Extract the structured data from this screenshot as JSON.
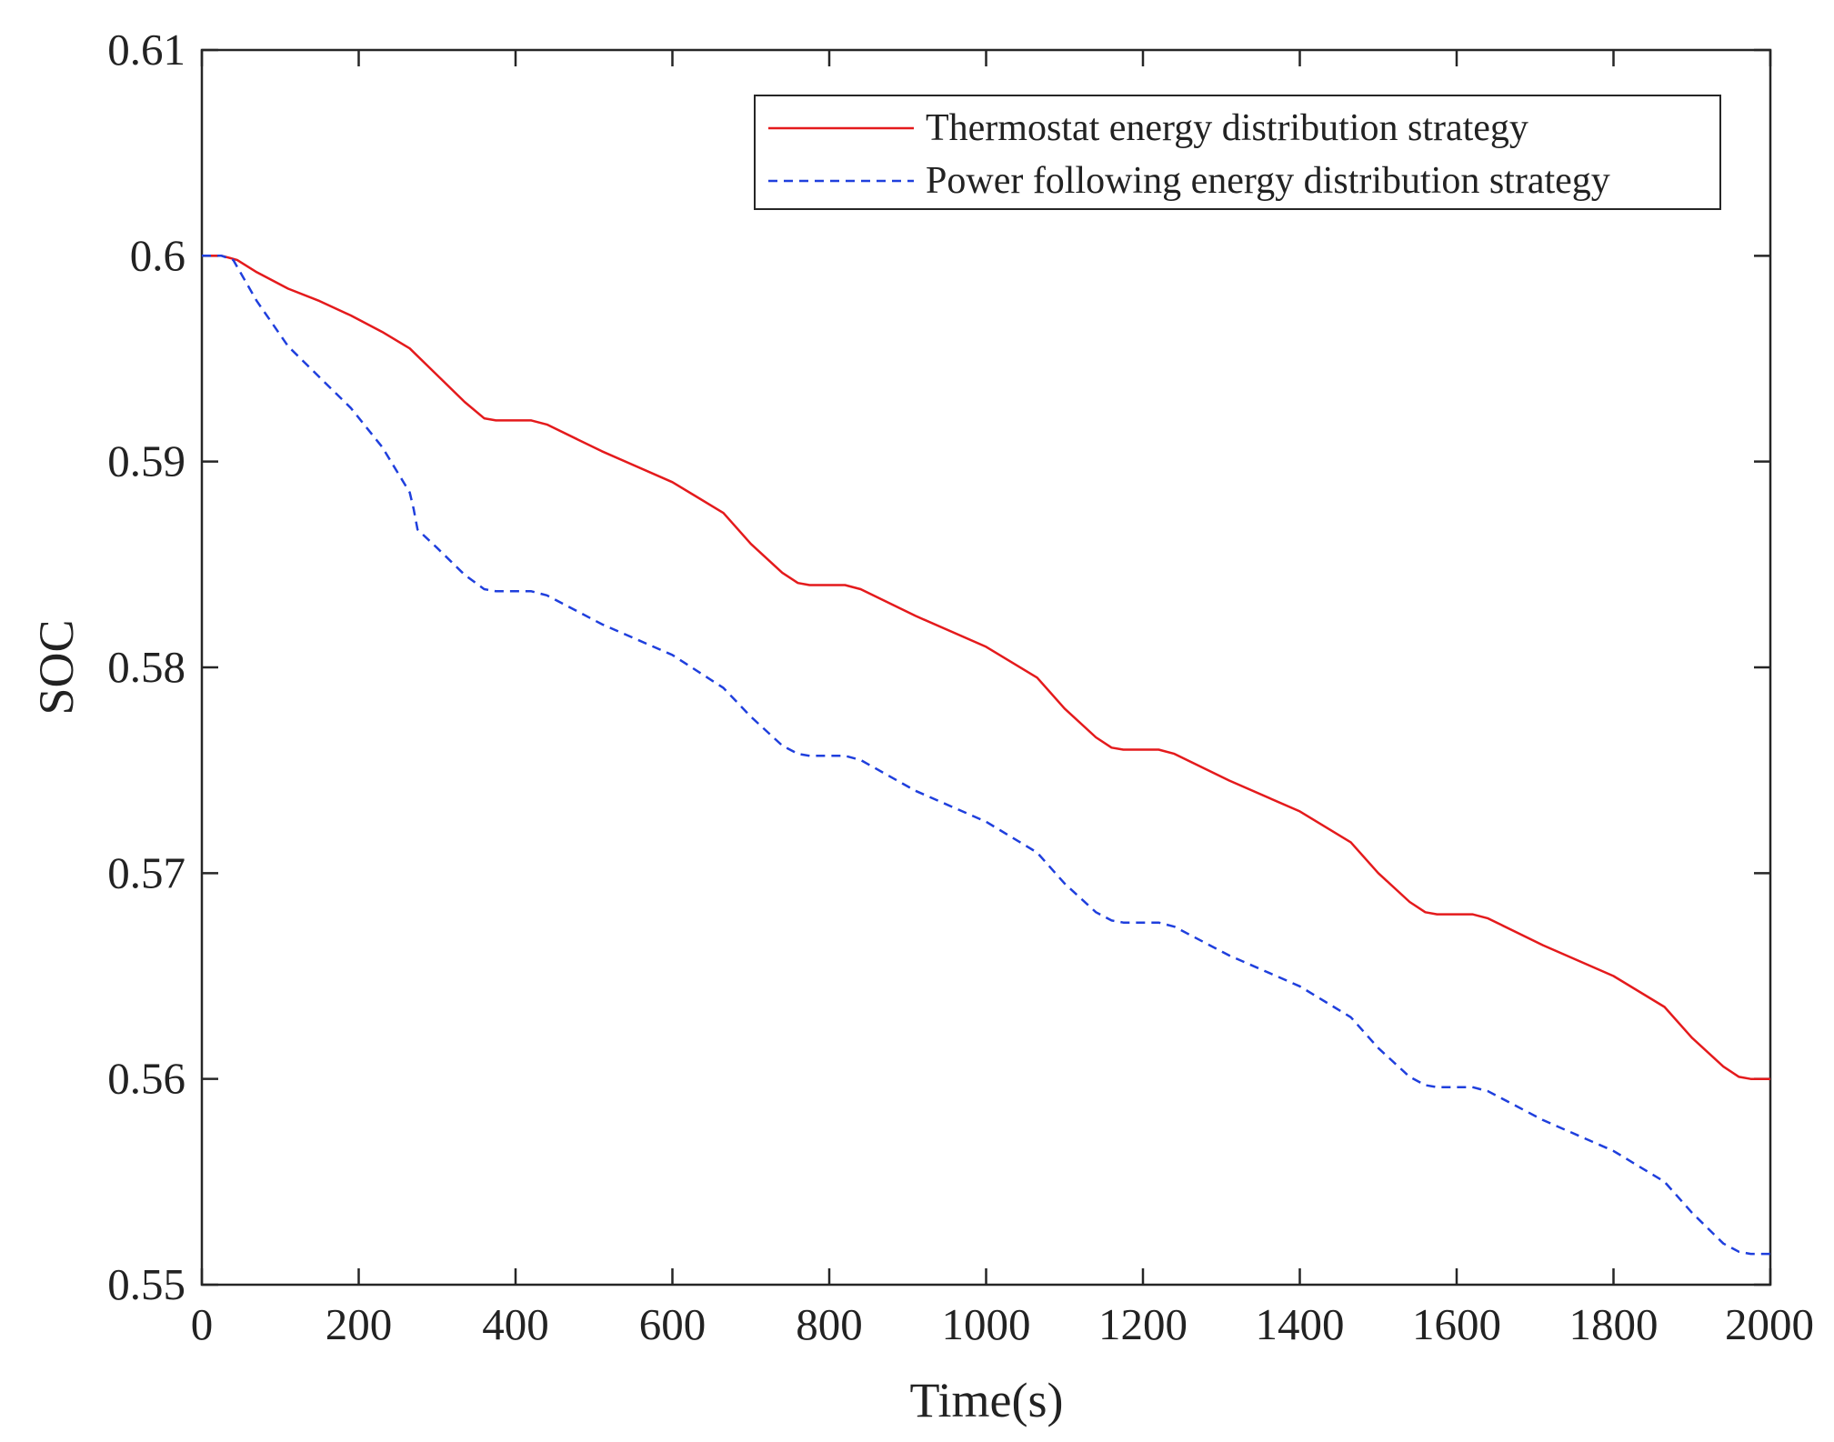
{
  "chart_data": {
    "type": "line",
    "title": "",
    "xlabel": "Time(s)",
    "ylabel": "SOC",
    "xlim": [
      0,
      2000
    ],
    "ylim": [
      0.55,
      0.61
    ],
    "xticks": [
      0,
      200,
      400,
      600,
      800,
      1000,
      1200,
      1400,
      1600,
      1800,
      2000
    ],
    "xtick_labels": [
      "0",
      "200",
      "400",
      "600",
      "800",
      "1000",
      "1200",
      "1400",
      "1600",
      "1800",
      "2000"
    ],
    "yticks": [
      0.55,
      0.56,
      0.57,
      0.58,
      0.59,
      0.6,
      0.61
    ],
    "ytick_labels": [
      "0.55",
      "0.56",
      "0.57",
      "0.58",
      "0.59",
      "0.6",
      "0.61"
    ],
    "grid": false,
    "legend_position": "top-right",
    "series": [
      {
        "name": "Thermostat energy distribution strategy",
        "color": "#e41a1c",
        "dash": "solid",
        "x": [
          0,
          25,
          45,
          70,
          110,
          150,
          190,
          230,
          265,
          300,
          335,
          360,
          375,
          420,
          440,
          510,
          600,
          665,
          700,
          740,
          760,
          775,
          820,
          840,
          910,
          1000,
          1065,
          1100,
          1140,
          1160,
          1175,
          1220,
          1240,
          1310,
          1400,
          1465,
          1500,
          1540,
          1560,
          1575,
          1620,
          1640,
          1710,
          1800,
          1865,
          1900,
          1940,
          1960,
          1975,
          2000
        ],
        "y": [
          0.6,
          0.6,
          0.5998,
          0.5992,
          0.5984,
          0.5978,
          0.5971,
          0.5963,
          0.5955,
          0.5942,
          0.5929,
          0.5921,
          0.592,
          0.592,
          0.5918,
          0.5905,
          0.589,
          0.5875,
          0.586,
          0.5846,
          0.5841,
          0.584,
          0.584,
          0.5838,
          0.5825,
          0.581,
          0.5795,
          0.578,
          0.5766,
          0.5761,
          0.576,
          0.576,
          0.5758,
          0.5745,
          0.573,
          0.5715,
          0.57,
          0.5686,
          0.5681,
          0.568,
          0.568,
          0.5678,
          0.5665,
          0.565,
          0.5635,
          0.562,
          0.5606,
          0.5601,
          0.56,
          0.56
        ]
      },
      {
        "name": "Power following energy distribution strategy",
        "color": "#1f3fdd",
        "dash": "dashed",
        "x": [
          0,
          25,
          40,
          70,
          110,
          150,
          190,
          230,
          265,
          270,
          275,
          300,
          335,
          360,
          375,
          420,
          440,
          510,
          600,
          665,
          700,
          740,
          760,
          775,
          820,
          840,
          910,
          1000,
          1065,
          1100,
          1140,
          1160,
          1175,
          1220,
          1240,
          1310,
          1400,
          1465,
          1500,
          1540,
          1560,
          1575,
          1620,
          1640,
          1710,
          1800,
          1865,
          1900,
          1940,
          1960,
          1975,
          2000
        ],
        "y": [
          0.6,
          0.6,
          0.5998,
          0.5978,
          0.5956,
          0.5941,
          0.5926,
          0.5907,
          0.5885,
          0.5877,
          0.5867,
          0.5858,
          0.5845,
          0.5838,
          0.5837,
          0.5837,
          0.5835,
          0.5821,
          0.5806,
          0.579,
          0.5776,
          0.5762,
          0.5758,
          0.5757,
          0.5757,
          0.5755,
          0.574,
          0.5725,
          0.571,
          0.5695,
          0.5681,
          0.5677,
          0.5676,
          0.5676,
          0.5674,
          0.566,
          0.5645,
          0.563,
          0.5615,
          0.5601,
          0.5597,
          0.5596,
          0.5596,
          0.5594,
          0.558,
          0.5565,
          0.555,
          0.5535,
          0.552,
          0.5516,
          0.5515,
          0.5515
        ]
      }
    ]
  }
}
